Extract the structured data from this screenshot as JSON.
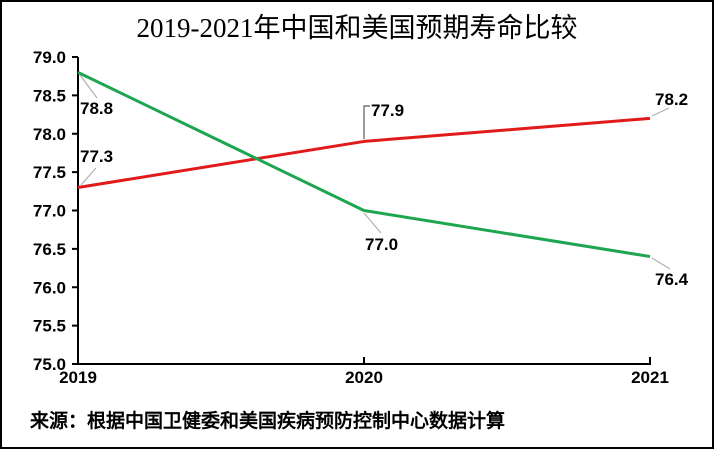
{
  "chart_data": {
    "type": "line",
    "title": "2019-2021年中国和美国预期寿命比较",
    "categories": [
      "2019",
      "2020",
      "2021"
    ],
    "series": [
      {
        "name": "red-line",
        "color": "#e21a1a",
        "values": [
          77.3,
          77.9,
          78.2
        ]
      },
      {
        "name": "green-line",
        "color": "#1ea550",
        "values": [
          78.8,
          77.0,
          76.4
        ]
      }
    ],
    "ylim": [
      75.0,
      79.0
    ],
    "ytick_step": 0.5,
    "ytick_labels": [
      "79.0",
      "78.5",
      "78.0",
      "77.5",
      "77.0",
      "76.5",
      "76.0",
      "75.5",
      "75.0"
    ],
    "data_labels": true,
    "grid": false,
    "legend": "none",
    "source_note": "来源：根据中国卫健委和美国疾病预防控制中心数据计算"
  },
  "colors": {
    "background": "#ffffff",
    "border": "#000000",
    "axis": "#000000",
    "text": "#000000",
    "leader_light": "#b0b0b0",
    "leader_dark": "#595959"
  }
}
